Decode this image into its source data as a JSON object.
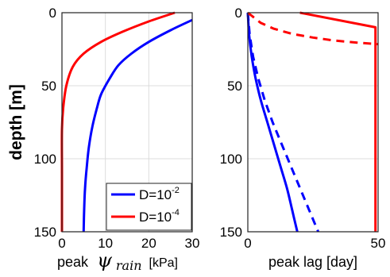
{
  "chart_data": [
    {
      "type": "line",
      "panel": "left",
      "xlabel": "peak ψ_rain [kPa]",
      "xlabel_parts": {
        "prefix": "peak",
        "symbol": "ψ",
        "subscript": "rain",
        "unit": "[kPa]"
      },
      "ylabel": "depth [m]",
      "xlim": [
        0,
        30
      ],
      "ylim": [
        150,
        0
      ],
      "y_reversed": true,
      "xticks": [
        "0",
        "10",
        "20",
        "30"
      ],
      "yticks": [
        "0",
        "50",
        "100",
        "150"
      ],
      "grid": true,
      "legend": {
        "placement": "bottom-right",
        "entries": [
          {
            "label": "D=10",
            "exponent": "-2",
            "color": "#0000ff"
          },
          {
            "label": "D=10",
            "exponent": "-4",
            "color": "#ff0000"
          }
        ]
      },
      "series": [
        {
          "color": "#0000ff",
          "style": "solid",
          "x": [
            30,
            25,
            20,
            16,
            13,
            11,
            9,
            8,
            7,
            6.2,
            5.7,
            5.3,
            5.1,
            5
          ],
          "y": [
            5,
            12,
            20,
            28,
            36,
            45,
            56,
            66,
            78,
            92,
            106,
            121,
            136,
            150
          ]
        },
        {
          "color": "#ff0000",
          "style": "solid",
          "x": [
            26,
            20,
            14,
            9,
            5,
            2.5,
            1,
            0.3,
            0,
            0,
            0
          ],
          "y": [
            0,
            6,
            13,
            20,
            28,
            37,
            50,
            65,
            80,
            110,
            150
          ]
        }
      ]
    },
    {
      "type": "line",
      "panel": "right",
      "xlabel": "peak lag [day]",
      "xlim": [
        0,
        50
      ],
      "ylim": [
        150,
        0
      ],
      "y_reversed": true,
      "xticks": [
        "0",
        "50"
      ],
      "yticks": [
        "0",
        "50",
        "100",
        "150"
      ],
      "grid": true,
      "series": [
        {
          "color": "#0000ff",
          "style": "solid",
          "x": [
            0,
            0.5,
            1.5,
            3,
            5,
            7.5,
            10,
            12.5,
            15,
            17,
            19
          ],
          "y": [
            0,
            15,
            30,
            45,
            60,
            75,
            90,
            105,
            120,
            135,
            150
          ]
        },
        {
          "color": "#0000ff",
          "style": "dashed",
          "x": [
            0,
            0.7,
            2,
            4,
            6.5,
            9.5,
            13,
            16.5,
            20,
            23.5,
            27
          ],
          "y": [
            0,
            15,
            30,
            45,
            60,
            75,
            90,
            105,
            120,
            135,
            150
          ]
        },
        {
          "color": "#ff0000",
          "style": "solid",
          "x": [
            20,
            49,
            49,
            49
          ],
          "y": [
            0,
            10,
            60,
            150
          ]
        },
        {
          "color": "#ff0000",
          "style": "dashed",
          "x": [
            0,
            5,
            10,
            17,
            25,
            33,
            42,
            50
          ],
          "y": [
            0,
            7,
            11,
            14.5,
            17,
            19,
            20.5,
            21.5
          ]
        }
      ]
    }
  ]
}
